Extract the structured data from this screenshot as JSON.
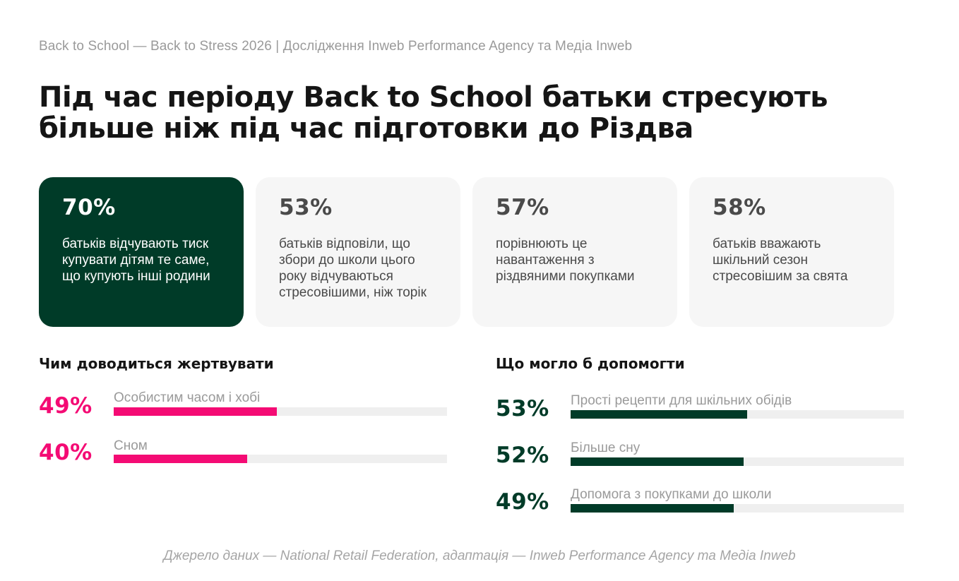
{
  "header": {
    "subtitle": "Back to School — Back to Stress 2026 | Дослідження Inweb Performance Agency та Медіа Inweb",
    "title": "Під час періоду Back to School батьки стресують більше ніж під час підготовки до Різдва"
  },
  "cards": [
    {
      "pct": "70%",
      "text": "батьків відчувають тиск купувати дітям те саме, що купують інші родини"
    },
    {
      "pct": "53%",
      "text": "батьків відповіли, що збори до школи цього року відчуваються стресовішими, ніж торік"
    },
    {
      "pct": "57%",
      "text": "порівнюють це навантаження з різдвяними покупками"
    },
    {
      "pct": "58%",
      "text": "батьків вважають шкільний сезон стресовішим за свята"
    }
  ],
  "chart_data": [
    {
      "type": "bar",
      "title": "Чим доводиться жертвувати",
      "categories": [
        "Особистим часом і хобі",
        "Сном"
      ],
      "values": [
        49,
        40
      ],
      "value_labels": [
        "49%",
        "40%"
      ],
      "ylim": [
        0,
        100
      ],
      "color": "#f40b74"
    },
    {
      "type": "bar",
      "title": "Що могло б допомогти",
      "categories": [
        "Прості рецепти для шкільних обідів",
        "Більше сну",
        "Допомога з покупками до школи"
      ],
      "values": [
        53,
        52,
        49
      ],
      "value_labels": [
        "53%",
        "52%",
        "49%"
      ],
      "ylim": [
        0,
        100
      ],
      "color": "#003b28"
    }
  ],
  "footer": {
    "source": "Джерело даних — National Retail Federation, адаптація — Inweb Performance Agency та Медіа Inweb"
  },
  "colors": {
    "accent_pink": "#f40b74",
    "accent_green": "#003b28",
    "muted_text": "#9a9a9a"
  }
}
